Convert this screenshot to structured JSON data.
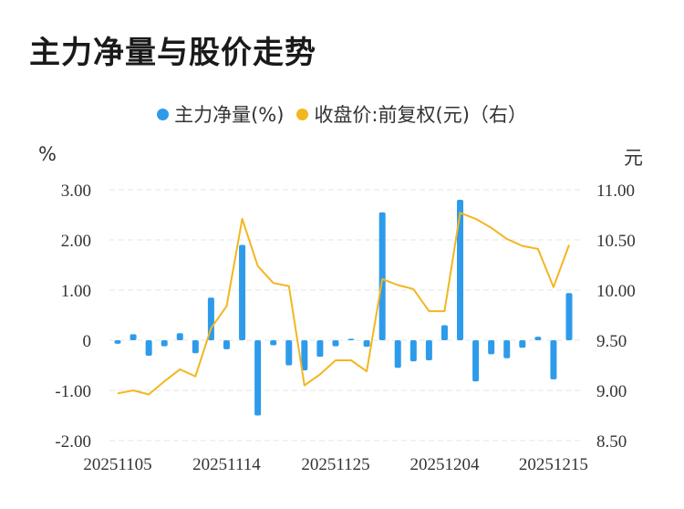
{
  "title": "主力净量与股价走势",
  "legend": [
    {
      "label": "主力净量(%)",
      "color": "#2e9bea"
    },
    {
      "label": "收盘价:前复权(元)（右）",
      "color": "#f3b61f"
    }
  ],
  "units": {
    "left": "%",
    "right": "元"
  },
  "chart_data": {
    "type": "bar+line",
    "title": "主力净量与股价走势",
    "x_ticks": [
      "20251105",
      "20251114",
      "20251125",
      "20251204",
      "20251215"
    ],
    "y_left": {
      "label": "%",
      "ticks": [
        "3.00",
        "2.00",
        "1.00",
        "0",
        "-1.00",
        "-2.00"
      ],
      "range": [
        -2,
        3
      ]
    },
    "y_right": {
      "label": "元",
      "ticks": [
        "11.00",
        "10.50",
        "10.00",
        "9.50",
        "9.00",
        "8.50"
      ],
      "range": [
        8.5,
        11
      ]
    },
    "grid": true,
    "legend_position": "top",
    "series": [
      {
        "name": "主力净量(%)",
        "type": "bar",
        "axis": "left",
        "color": "#2e9bea",
        "values": [
          -0.07,
          0.12,
          -0.31,
          -0.12,
          0.14,
          -0.26,
          0.85,
          -0.18,
          1.9,
          -1.5,
          -0.1,
          -0.5,
          -0.6,
          -0.33,
          -0.12,
          0.03,
          -0.13,
          2.55,
          -0.55,
          -0.42,
          -0.4,
          0.3,
          2.8,
          -0.82,
          -0.28,
          -0.36,
          -0.15,
          0.07,
          -0.78,
          0.94
        ]
      },
      {
        "name": "收盘价:前复权(元)（右）",
        "type": "line",
        "axis": "right",
        "color": "#f3b61f",
        "values": [
          8.97,
          9.0,
          8.96,
          9.09,
          9.21,
          9.14,
          9.62,
          9.84,
          10.71,
          10.24,
          10.07,
          10.04,
          9.05,
          9.16,
          9.3,
          9.3,
          9.19,
          10.11,
          10.05,
          10.01,
          9.79,
          9.79,
          10.77,
          10.71,
          10.62,
          10.51,
          10.44,
          10.41,
          10.03,
          10.45
        ]
      }
    ]
  }
}
